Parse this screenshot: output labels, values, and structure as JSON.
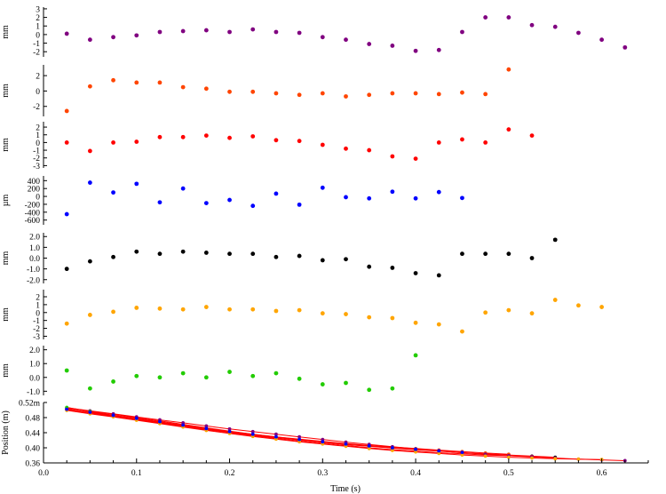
{
  "chart_data": {
    "type": "scatter",
    "xlabel": "Time (s)",
    "xlim": [
      0,
      0.65
    ],
    "x_ticks": [
      "0.0",
      "0.1",
      "0.2",
      "0.3",
      "0.4",
      "0.5",
      "0.6"
    ],
    "x_tick_values": [
      0.0,
      0.1,
      0.2,
      0.3,
      0.4,
      0.5,
      0.6
    ],
    "panels": [
      {
        "ylabel": "mm",
        "color": "#800080",
        "ylim": [
          -2.6,
          3.2
        ],
        "ticks": [
          3,
          2,
          1,
          0,
          -1,
          -2
        ],
        "tick_labels": [
          "3",
          "2",
          "1",
          "0",
          "-1",
          "-2"
        ],
        "x": [
          0.025,
          0.05,
          0.075,
          0.1,
          0.125,
          0.15,
          0.175,
          0.2,
          0.225,
          0.25,
          0.275,
          0.3,
          0.325,
          0.35,
          0.375,
          0.4,
          0.425,
          0.45,
          0.475,
          0.5,
          0.525,
          0.55,
          0.575,
          0.6,
          0.625
        ],
        "y": [
          0.1,
          -0.6,
          -0.3,
          -0.1,
          0.3,
          0.4,
          0.5,
          0.3,
          0.6,
          0.3,
          0.2,
          -0.3,
          -0.6,
          -1.1,
          -1.3,
          -1.9,
          -1.8,
          0.3,
          2.0,
          2.0,
          1.1,
          0.9,
          0.2,
          -0.6,
          -1.5
        ]
      },
      {
        "ylabel": "mm",
        "color": "#ff4500",
        "ylim": [
          -3.3,
          3.4
        ],
        "ticks": [
          2,
          0,
          -2
        ],
        "tick_labels": [
          "2",
          "0",
          "-2"
        ],
        "x": [
          0.025,
          0.05,
          0.075,
          0.1,
          0.125,
          0.15,
          0.175,
          0.2,
          0.225,
          0.25,
          0.275,
          0.3,
          0.325,
          0.35,
          0.375,
          0.4,
          0.425,
          0.45,
          0.475,
          0.5
        ],
        "y": [
          -2.6,
          0.6,
          1.4,
          1.1,
          1.1,
          0.5,
          0.3,
          -0.1,
          -0.1,
          -0.3,
          -0.5,
          -0.3,
          -0.7,
          -0.5,
          -0.3,
          -0.3,
          -0.4,
          -0.2,
          -0.4,
          2.8
        ]
      },
      {
        "ylabel": "mm",
        "color": "#ff0000",
        "ylim": [
          -3.3,
          2.7
        ],
        "ticks": [
          2,
          1,
          0,
          -1,
          -2,
          -3
        ],
        "tick_labels": [
          "2",
          "1",
          "0",
          "-1",
          "-2",
          "-3"
        ],
        "x": [
          0.025,
          0.05,
          0.075,
          0.1,
          0.125,
          0.15,
          0.175,
          0.2,
          0.225,
          0.25,
          0.275,
          0.3,
          0.325,
          0.35,
          0.375,
          0.4,
          0.425,
          0.45,
          0.475,
          0.5,
          0.525
        ],
        "y": [
          0.0,
          -1.1,
          0.0,
          0.1,
          0.7,
          0.7,
          0.9,
          0.6,
          0.8,
          0.3,
          0.2,
          -0.3,
          -0.8,
          -1.0,
          -1.8,
          -2.1,
          0.0,
          0.4,
          0.0,
          1.7,
          0.9
        ]
      },
      {
        "ylabel": "µm",
        "color": "#0000ff",
        "ylim": [
          -720,
          520
        ],
        "ticks": [
          400,
          200,
          0,
          -200,
          -400,
          -600
        ],
        "tick_labels": [
          "400",
          "200",
          "0",
          "-200",
          "-400",
          "-600"
        ],
        "x": [
          0.025,
          0.05,
          0.075,
          0.1,
          0.125,
          0.15,
          0.175,
          0.2,
          0.225,
          0.25,
          0.275,
          0.3,
          0.325,
          0.35,
          0.375,
          0.4,
          0.425,
          0.45
        ],
        "y": [
          -450,
          350,
          100,
          320,
          -150,
          200,
          -170,
          -90,
          -240,
          70,
          -210,
          220,
          -20,
          -50,
          120,
          -50,
          110,
          -40
        ]
      },
      {
        "ylabel": "mm",
        "color": "#000000",
        "ylim": [
          -2.35,
          2.35
        ],
        "ticks": [
          2.0,
          1.0,
          0.0,
          -1.0,
          -2.0
        ],
        "tick_labels": [
          "2.0",
          "1.0",
          "0.0",
          "-1.0",
          "-2.0"
        ],
        "x": [
          0.025,
          0.05,
          0.075,
          0.1,
          0.125,
          0.15,
          0.175,
          0.2,
          0.225,
          0.25,
          0.275,
          0.3,
          0.325,
          0.35,
          0.375,
          0.4,
          0.425,
          0.45,
          0.475,
          0.5,
          0.525,
          0.55
        ],
        "y": [
          -1.0,
          -0.3,
          0.1,
          0.6,
          0.4,
          0.6,
          0.5,
          0.4,
          0.4,
          0.1,
          0.2,
          -0.2,
          -0.1,
          -0.8,
          -0.9,
          -1.4,
          -1.6,
          0.4,
          0.4,
          0.4,
          0.0,
          1.7
        ]
      },
      {
        "ylabel": "mm",
        "color": "#ffa500",
        "ylim": [
          -3.4,
          2.9
        ],
        "ticks": [
          2,
          1,
          0,
          -1,
          -2,
          -3
        ],
        "tick_labels": [
          "2",
          "1",
          "0",
          "-1",
          "-2",
          "-3"
        ],
        "x": [
          0.025,
          0.05,
          0.075,
          0.1,
          0.125,
          0.15,
          0.175,
          0.2,
          0.225,
          0.25,
          0.275,
          0.3,
          0.325,
          0.35,
          0.375,
          0.4,
          0.425,
          0.45,
          0.475,
          0.5,
          0.525,
          0.55,
          0.575,
          0.6
        ],
        "y": [
          -1.4,
          -0.3,
          0.1,
          0.6,
          0.5,
          0.4,
          0.7,
          0.4,
          0.4,
          0.2,
          0.3,
          -0.1,
          -0.2,
          -0.6,
          -0.7,
          -1.3,
          -1.5,
          -2.4,
          0.0,
          0.3,
          -0.1,
          1.6,
          0.9,
          0.7
        ]
      },
      {
        "ylabel": "mm",
        "color": "#22cc00",
        "ylim": [
          -1.3,
          2.3
        ],
        "ticks": [
          2.0,
          1.0,
          0.0,
          -1.0
        ],
        "tick_labels": [
          "2.0",
          "1.0",
          "0.0",
          "-1.0"
        ],
        "x": [
          0.025,
          0.05,
          0.075,
          0.1,
          0.125,
          0.15,
          0.175,
          0.2,
          0.225,
          0.25,
          0.275,
          0.3,
          0.325,
          0.35,
          0.375,
          0.4
        ],
        "y": [
          0.5,
          -0.8,
          -0.3,
          0.1,
          0.0,
          0.3,
          0.0,
          0.4,
          0.1,
          0.3,
          -0.1,
          -0.5,
          -0.4,
          -0.9,
          -0.8,
          1.6
        ]
      },
      {
        "ylabel": "Position (m)",
        "kind": "trajectories",
        "ylim": [
          0.36,
          0.52
        ],
        "ticks": [
          0.52,
          0.48,
          0.44,
          0.4,
          0.36
        ],
        "tick_labels": [
          "0.52m",
          "0.48",
          "0.44",
          "0.40",
          "0.36"
        ],
        "line_color": "#ff0000",
        "trajectories": [
          {
            "color": "#000000",
            "x": [
              0.025,
              0.05,
              0.075,
              0.1,
              0.125,
              0.15,
              0.175,
              0.2,
              0.225,
              0.25,
              0.275,
              0.3,
              0.325,
              0.35,
              0.375,
              0.4,
              0.425,
              0.45,
              0.475,
              0.5,
              0.525,
              0.55
            ],
            "y": [
              0.503,
              0.493,
              0.485,
              0.476,
              0.466,
              0.457,
              0.449,
              0.441,
              0.434,
              0.427,
              0.421,
              0.415,
              0.409,
              0.404,
              0.399,
              0.395,
              0.391,
              0.387,
              0.384,
              0.381,
              0.378,
              0.375
            ]
          },
          {
            "color": "#ff4500",
            "x": [
              0.025,
              0.05,
              0.075,
              0.1,
              0.125,
              0.15,
              0.175,
              0.2,
              0.225,
              0.25,
              0.275,
              0.3,
              0.325,
              0.35,
              0.375,
              0.4,
              0.425,
              0.45,
              0.475,
              0.5
            ],
            "y": [
              0.505,
              0.497,
              0.489,
              0.48,
              0.471,
              0.462,
              0.453,
              0.444,
              0.436,
              0.429,
              0.423,
              0.417,
              0.411,
              0.406,
              0.402,
              0.398,
              0.394,
              0.39,
              0.386,
              0.383
            ]
          },
          {
            "color": "#ff0000",
            "x": [
              0.025,
              0.05,
              0.075,
              0.1,
              0.125,
              0.15,
              0.175,
              0.2,
              0.225,
              0.25,
              0.275,
              0.3,
              0.325,
              0.35,
              0.375,
              0.4,
              0.425,
              0.45,
              0.475,
              0.5,
              0.525
            ],
            "y": [
              0.501,
              0.492,
              0.483,
              0.474,
              0.465,
              0.456,
              0.448,
              0.44,
              0.432,
              0.425,
              0.418,
              0.412,
              0.406,
              0.4,
              0.395,
              0.391,
              0.387,
              0.384,
              0.381,
              0.379,
              0.377
            ]
          },
          {
            "color": "#800080",
            "x": [
              0.025,
              0.05,
              0.075,
              0.1,
              0.125,
              0.15,
              0.175,
              0.2,
              0.225,
              0.25,
              0.275,
              0.3,
              0.325,
              0.35,
              0.375,
              0.4,
              0.425,
              0.45,
              0.475,
              0.5,
              0.525,
              0.55,
              0.575,
              0.6,
              0.625
            ],
            "y": [
              0.506,
              0.498,
              0.49,
              0.482,
              0.474,
              0.466,
              0.458,
              0.45,
              0.443,
              0.436,
              0.429,
              0.422,
              0.415,
              0.409,
              0.403,
              0.397,
              0.392,
              0.387,
              0.383,
              0.379,
              0.376,
              0.373,
              0.37,
              0.368,
              0.366
            ]
          },
          {
            "color": "#22cc00",
            "x": [
              0.025,
              0.05,
              0.075,
              0.1,
              0.125,
              0.15,
              0.175,
              0.2,
              0.225,
              0.25,
              0.275,
              0.3,
              0.325,
              0.35,
              0.375,
              0.4
            ],
            "y": [
              0.507,
              0.496,
              0.486,
              0.477,
              0.468,
              0.459,
              0.45,
              0.442,
              0.435,
              0.428,
              0.421,
              0.415,
              0.409,
              0.404,
              0.4,
              0.396
            ]
          },
          {
            "color": "#ffa500",
            "x": [
              0.025,
              0.05,
              0.075,
              0.1,
              0.125,
              0.15,
              0.175,
              0.2,
              0.225,
              0.25,
              0.275,
              0.3,
              0.325,
              0.35,
              0.375,
              0.4,
              0.425,
              0.45,
              0.475,
              0.5,
              0.525,
              0.55,
              0.575,
              0.6
            ],
            "y": [
              0.499,
              0.49,
              0.482,
              0.473,
              0.464,
              0.455,
              0.446,
              0.438,
              0.43,
              0.423,
              0.416,
              0.41,
              0.404,
              0.398,
              0.393,
              0.389,
              0.385,
              0.381,
              0.378,
              0.375,
              0.373,
              0.371,
              0.37,
              0.369
            ]
          },
          {
            "color": "#0000ff",
            "x": [
              0.025,
              0.05,
              0.075,
              0.1,
              0.125,
              0.15,
              0.175,
              0.2,
              0.225,
              0.25,
              0.275,
              0.3,
              0.325,
              0.35,
              0.375,
              0.4,
              0.425,
              0.45
            ],
            "y": [
              0.502,
              0.494,
              0.486,
              0.478,
              0.469,
              0.46,
              0.451,
              0.443,
              0.436,
              0.429,
              0.422,
              0.416,
              0.41,
              0.405,
              0.4,
              0.396,
              0.392,
              0.388
            ]
          }
        ]
      }
    ]
  }
}
